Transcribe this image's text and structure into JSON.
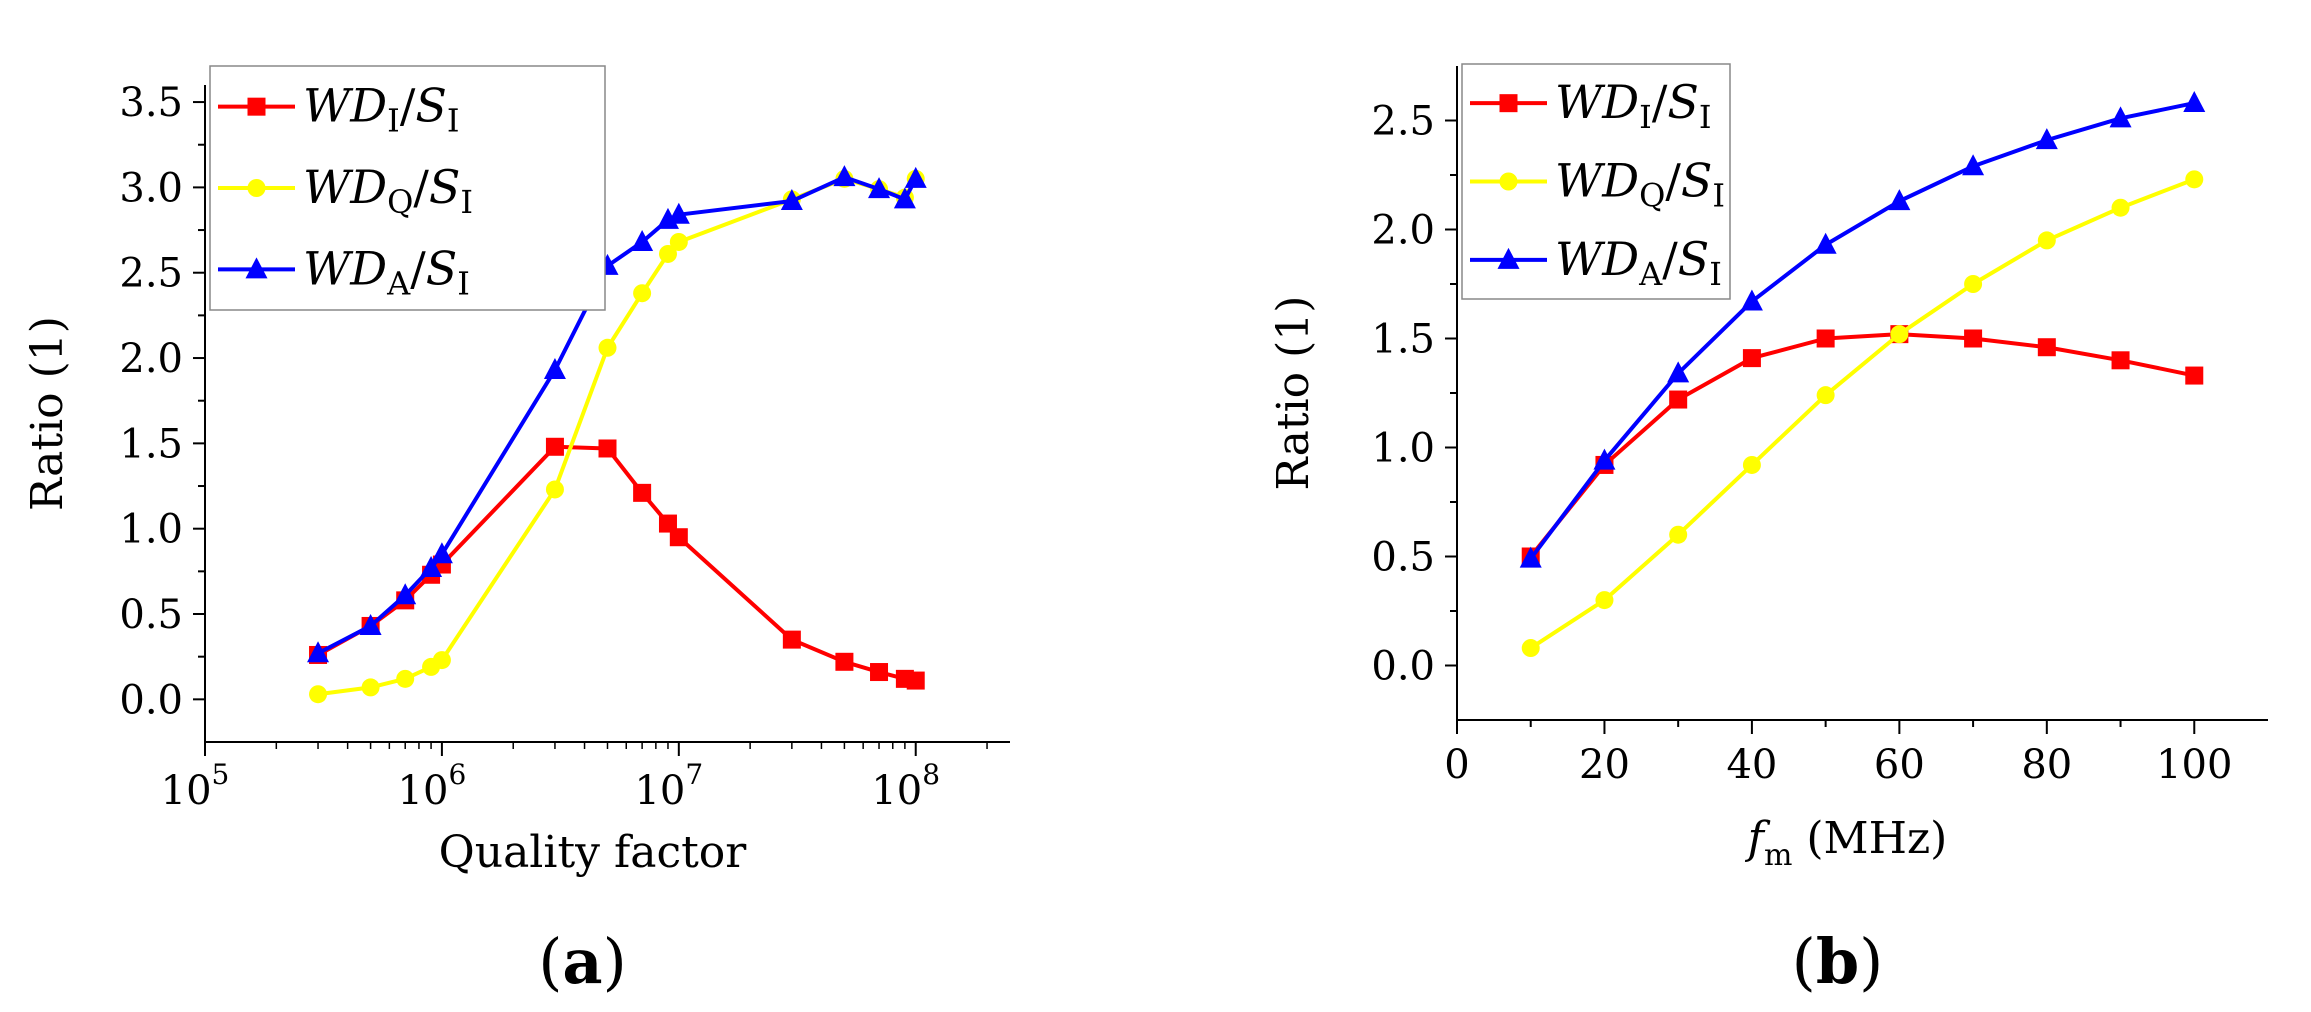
{
  "chart_data": [
    {
      "type": "line",
      "panel_label": "a",
      "xscale": "log",
      "xlabel": "Quality factor",
      "ylabel": "Ratio (1)",
      "xlim": [
        100000,
        250000000
      ],
      "ylim": [
        -0.25,
        3.6
      ],
      "xticks": [
        {
          "value": 100000,
          "base": "10",
          "exp": "5"
        },
        {
          "value": 1000000,
          "base": "10",
          "exp": "6"
        },
        {
          "value": 10000000,
          "base": "10",
          "exp": "7"
        },
        {
          "value": 100000000,
          "base": "10",
          "exp": "8"
        }
      ],
      "yticks": [
        "0.0",
        "0.5",
        "1.0",
        "1.5",
        "2.0",
        "2.5",
        "3.0",
        "3.5"
      ],
      "legend_position": "top-left",
      "x": [
        300000,
        500000,
        700000,
        900000,
        1000000,
        3000000,
        5000000,
        7000000,
        9000000,
        10000000,
        30000000,
        50000000,
        70000000,
        90000000,
        100000000
      ],
      "series": [
        {
          "name": "WD_I/S_I",
          "main": "WD",
          "sub": "I",
          "main2": "S",
          "sub2": "I",
          "color": "#ff0000",
          "marker": "square",
          "values": [
            0.26,
            0.43,
            0.58,
            0.73,
            0.79,
            1.48,
            1.47,
            1.21,
            1.03,
            0.95,
            0.35,
            0.22,
            0.16,
            0.12,
            0.11
          ]
        },
        {
          "name": "WD_Q/S_I",
          "main": "WD",
          "sub": "Q",
          "main2": "S",
          "sub2": "I",
          "color": "#ffff00",
          "marker": "circle",
          "values": [
            0.03,
            0.07,
            0.12,
            0.19,
            0.23,
            1.23,
            2.06,
            2.38,
            2.61,
            2.68,
            2.93,
            3.05,
            2.99,
            2.94,
            3.05
          ]
        },
        {
          "name": "WD_A/S_I",
          "main": "WD",
          "sub": "A",
          "main2": "S",
          "sub2": "I",
          "color": "#0000ff",
          "marker": "triangle",
          "values": [
            0.27,
            0.43,
            0.61,
            0.77,
            0.85,
            1.93,
            2.54,
            2.68,
            2.81,
            2.84,
            2.92,
            3.06,
            2.99,
            2.93,
            3.05
          ]
        }
      ]
    },
    {
      "type": "line",
      "panel_label": "b",
      "xscale": "linear",
      "xlabel_main": "f",
      "xlabel_sub": "m",
      "xlabel_rest": " (MHz)",
      "ylabel": "Ratio (1)",
      "xlim": [
        0,
        110
      ],
      "ylim": [
        -0.25,
        2.75
      ],
      "xticks": [
        "0",
        "20",
        "40",
        "60",
        "80",
        "100"
      ],
      "yticks": [
        "0.0",
        "0.5",
        "1.0",
        "1.5",
        "2.0",
        "2.5"
      ],
      "legend_position": "top-left",
      "x": [
        10,
        20,
        30,
        40,
        50,
        60,
        70,
        80,
        90,
        100
      ],
      "series": [
        {
          "name": "WD_I/S_I",
          "main": "WD",
          "sub": "I",
          "main2": "S",
          "sub2": "I",
          "color": "#ff0000",
          "marker": "square",
          "values": [
            0.5,
            0.92,
            1.22,
            1.41,
            1.5,
            1.52,
            1.5,
            1.46,
            1.4,
            1.33
          ]
        },
        {
          "name": "WD_Q/S_I",
          "main": "WD",
          "sub": "Q",
          "main2": "S",
          "sub2": "I",
          "color": "#ffff00",
          "marker": "circle",
          "values": [
            0.08,
            0.3,
            0.6,
            0.92,
            1.24,
            1.52,
            1.75,
            1.95,
            2.1,
            2.23
          ]
        },
        {
          "name": "WD_A/S_I",
          "main": "WD",
          "sub": "A",
          "main2": "S",
          "sub2": "I",
          "color": "#0000ff",
          "marker": "triangle",
          "values": [
            0.49,
            0.94,
            1.34,
            1.67,
            1.93,
            2.13,
            2.29,
            2.41,
            2.51,
            2.58
          ]
        }
      ]
    }
  ]
}
